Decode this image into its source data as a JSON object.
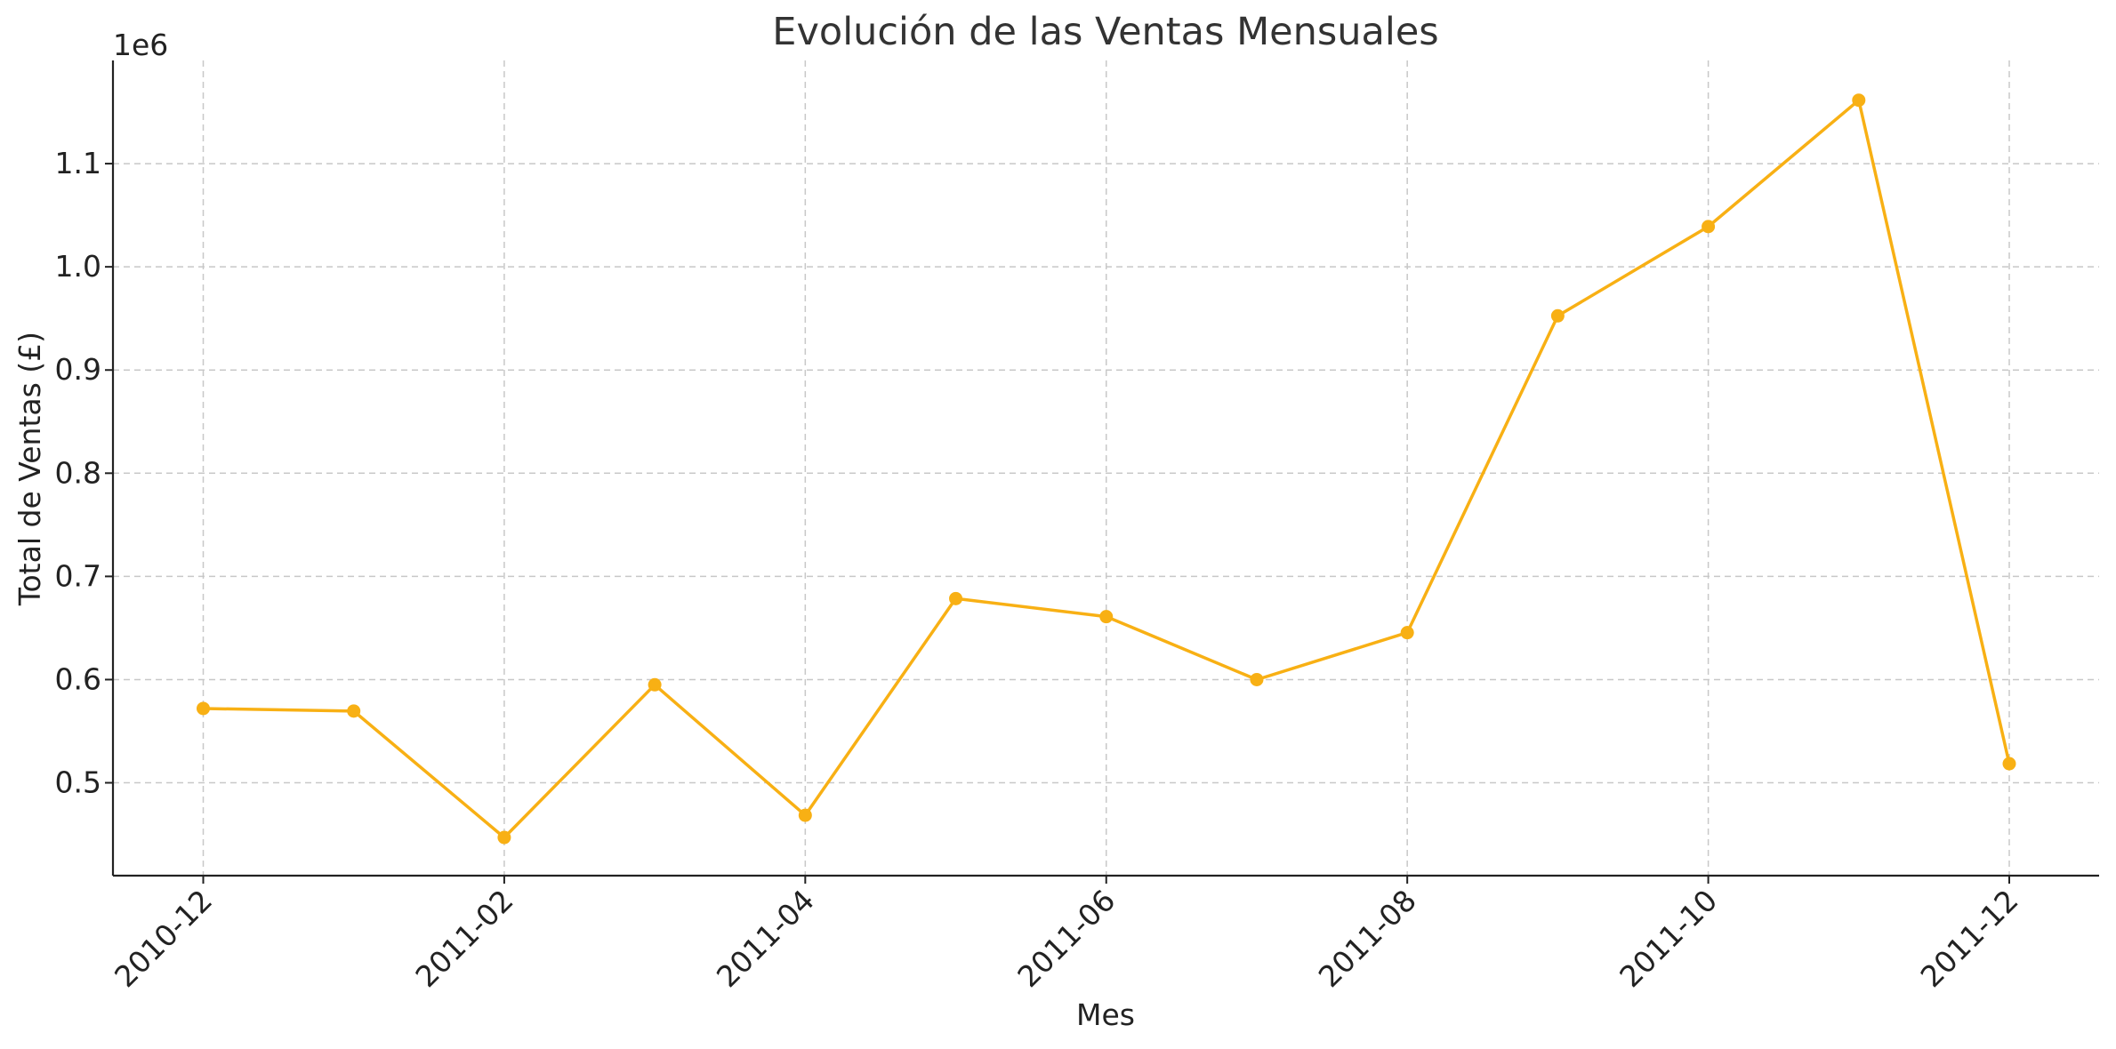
{
  "chart_data": {
    "type": "line",
    "title": "Evolución de las Ventas Mensuales",
    "xlabel": "Mes",
    "ylabel": "Total de Ventas (£)",
    "y_offset_label": "1e6",
    "x": [
      "2010-12",
      "2011-01",
      "2011-02",
      "2011-03",
      "2011-04",
      "2011-05",
      "2011-06",
      "2011-07",
      "2011-08",
      "2011-09",
      "2011-10",
      "2011-11",
      "2011-12"
    ],
    "xticks": [
      "2010-12",
      "2011-02",
      "2011-04",
      "2011-06",
      "2011-08",
      "2011-10",
      "2011-12"
    ],
    "series": [
      {
        "color": "#f8b014",
        "marker": "circle",
        "values": [
          572000,
          569500,
          447000,
          595000,
          468500,
          678500,
          661000,
          600000,
          645500,
          952500,
          1039000,
          1161500,
          518500
        ]
      }
    ],
    "yticks": [
      0.5,
      0.6,
      0.7,
      0.8,
      0.9,
      1.0,
      1.1
    ],
    "yticks_multiplier": 1000000,
    "ylim": [
      410000,
      1200000
    ],
    "grid": true,
    "legend": "none"
  }
}
